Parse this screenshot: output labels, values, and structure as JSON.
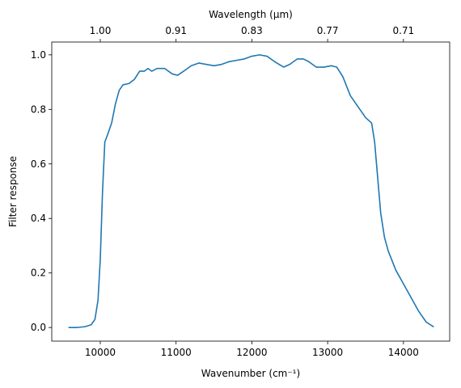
{
  "chart_data": {
    "type": "line",
    "xlabel": "Wavenumber (cm⁻¹)",
    "ylabel": "Filter response",
    "x2label": "Wavelength (μm)",
    "x": [
      9580,
      9700,
      9800,
      9880,
      9930,
      9970,
      10000,
      10030,
      10060,
      10100,
      10150,
      10200,
      10250,
      10300,
      10380,
      10450,
      10520,
      10580,
      10630,
      10680,
      10750,
      10850,
      10950,
      11020,
      11100,
      11200,
      11300,
      11400,
      11500,
      11600,
      11700,
      11800,
      11900,
      12000,
      12100,
      12200,
      12300,
      12420,
      12500,
      12600,
      12680,
      12750,
      12850,
      12950,
      13050,
      13120,
      13200,
      13300,
      13400,
      13500,
      13580,
      13620,
      13660,
      13700,
      13750,
      13800,
      13900,
      14000,
      14100,
      14200,
      14300,
      14400
    ],
    "series": [
      {
        "name": "Filter response",
        "color": "#1f77b4",
        "values": [
          0.0,
          0.0,
          0.003,
          0.01,
          0.03,
          0.1,
          0.25,
          0.5,
          0.68,
          0.71,
          0.75,
          0.82,
          0.87,
          0.89,
          0.895,
          0.91,
          0.94,
          0.94,
          0.95,
          0.94,
          0.95,
          0.95,
          0.93,
          0.925,
          0.94,
          0.96,
          0.97,
          0.965,
          0.96,
          0.965,
          0.975,
          0.98,
          0.985,
          0.995,
          1.0,
          0.995,
          0.975,
          0.955,
          0.965,
          0.985,
          0.985,
          0.975,
          0.955,
          0.955,
          0.96,
          0.955,
          0.92,
          0.85,
          0.81,
          0.77,
          0.75,
          0.68,
          0.55,
          0.42,
          0.33,
          0.28,
          0.21,
          0.16,
          0.11,
          0.06,
          0.02,
          0.002
        ]
      }
    ],
    "xlim": [
      9360,
      14610
    ],
    "ylim": [
      -0.05,
      1.047
    ],
    "xticks": [
      10000,
      11000,
      12000,
      13000,
      14000
    ],
    "yticks": [
      {
        "value": 0,
        "label": "0.0"
      },
      {
        "value": 0.2,
        "label": "0.2"
      },
      {
        "value": 0.4,
        "label": "0.4"
      },
      {
        "value": 0.6,
        "label": "0.6"
      },
      {
        "value": 0.8,
        "label": "0.8"
      },
      {
        "value": 1,
        "label": "1.0"
      }
    ],
    "x2ticks": [
      {
        "value": 10000,
        "label": "1.00"
      },
      {
        "value": 11000,
        "label": "0.91"
      },
      {
        "value": 12000,
        "label": "0.83"
      },
      {
        "value": 13000,
        "label": "0.77"
      },
      {
        "value": 14000,
        "label": "0.71"
      }
    ]
  }
}
